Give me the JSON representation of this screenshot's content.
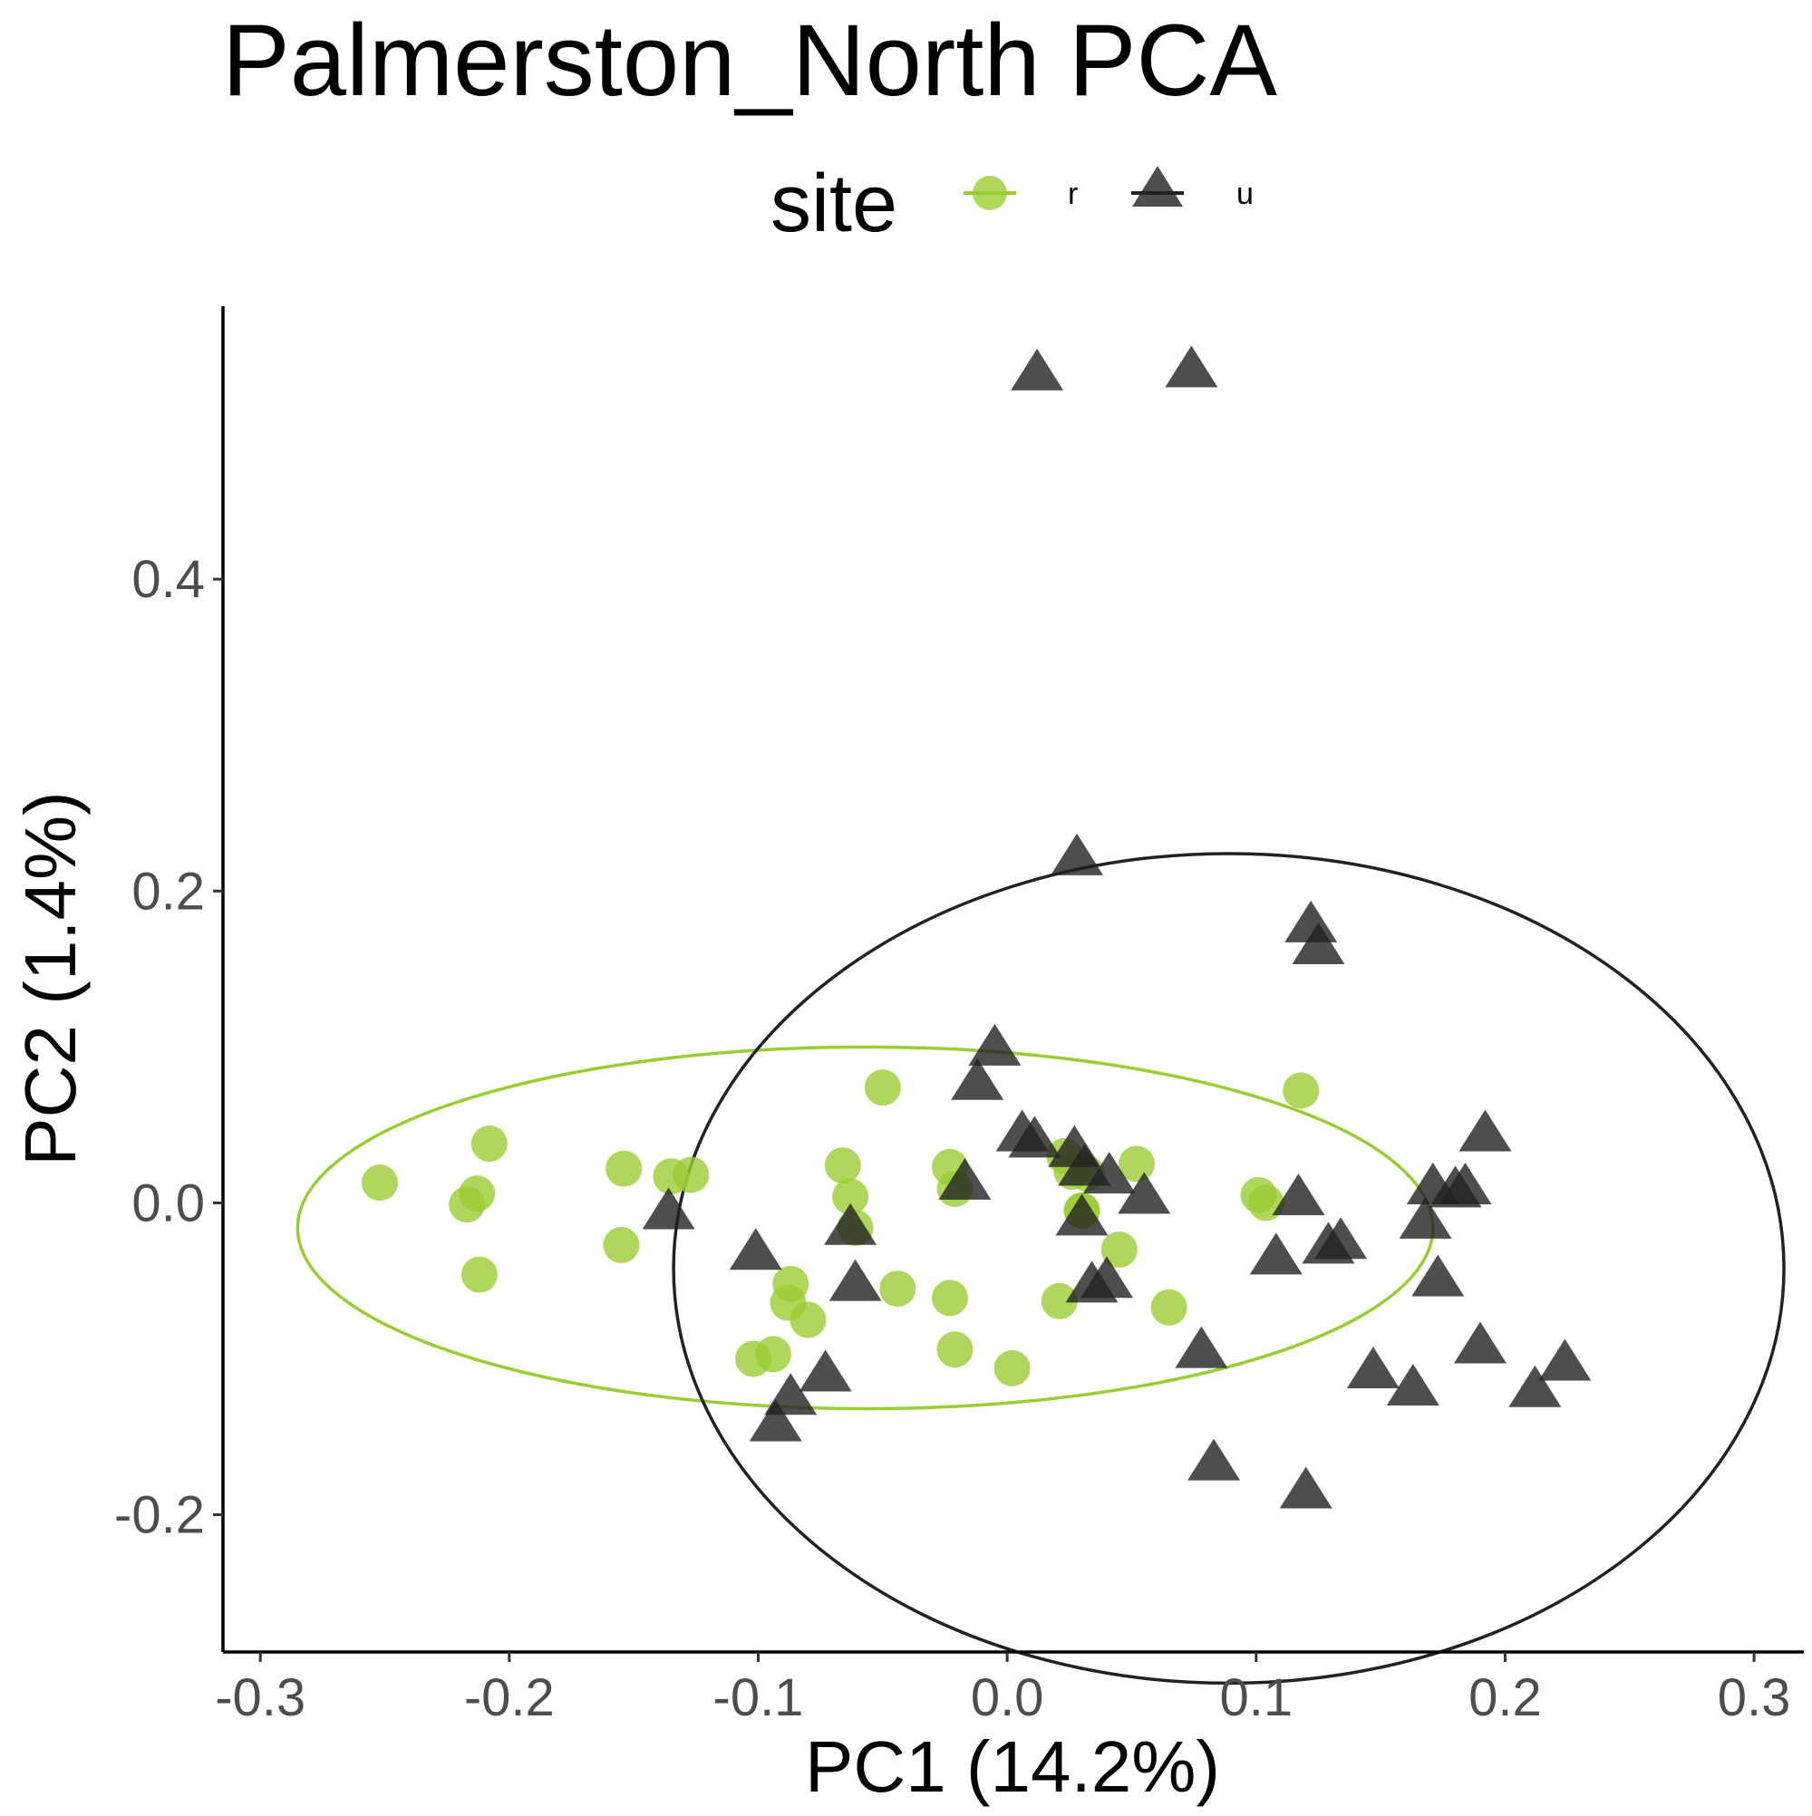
{
  "chart_data": {
    "type": "scatter",
    "title": "Palmerston_North PCA",
    "xlabel": "PC1 (14.2%)",
    "ylabel": "PC2 (1.4%)",
    "xlim": [
      -0.315,
      0.32
    ],
    "ylim": [
      -0.288,
      0.575
    ],
    "xticks": [
      -0.3,
      -0.2,
      -0.1,
      0.0,
      0.1,
      0.2,
      0.3
    ],
    "xtick_labels": [
      "-0.3",
      "-0.2",
      "-0.1",
      "0.0",
      "0.1",
      "0.2",
      "0.3"
    ],
    "yticks": [
      -0.2,
      0.0,
      0.2,
      0.4
    ],
    "ytick_labels": [
      "-0.2",
      "0.0",
      "0.2",
      "0.4"
    ],
    "grid": false,
    "legend": {
      "title": "site",
      "position": "top",
      "entries": [
        {
          "label": "r",
          "shape": "circle",
          "color": "#9acd32"
        },
        {
          "label": "u",
          "shape": "triangle",
          "color": "#222222"
        }
      ]
    },
    "series": [
      {
        "name": "r",
        "marker": "circle",
        "color": "#9acd32",
        "x": [
          -0.252,
          -0.208,
          -0.213,
          -0.217,
          -0.212,
          -0.154,
          -0.155,
          -0.135,
          -0.127,
          -0.05,
          -0.066,
          -0.063,
          -0.061,
          -0.087,
          -0.088,
          -0.08,
          -0.044,
          -0.094,
          -0.102,
          -0.023,
          -0.021,
          -0.023,
          -0.021,
          0.002,
          0.023,
          0.026,
          0.032,
          0.03,
          0.052,
          0.03,
          0.045,
          0.021,
          0.065,
          0.101,
          0.104,
          0.118
        ],
        "y": [
          0.013,
          0.038,
          0.006,
          -0.001,
          -0.046,
          0.022,
          -0.027,
          0.017,
          0.018,
          0.074,
          0.024,
          0.004,
          -0.016,
          -0.052,
          -0.064,
          -0.075,
          -0.055,
          -0.097,
          -0.1,
          0.023,
          0.009,
          -0.061,
          -0.094,
          -0.106,
          0.03,
          0.02,
          0.019,
          -0.005,
          0.025,
          -0.005,
          -0.03,
          -0.063,
          -0.067,
          0.005,
          0.0,
          0.072
        ]
      },
      {
        "name": "u",
        "marker": "triangle",
        "color": "#222222",
        "x": [
          0.012,
          0.074,
          0.028,
          0.122,
          0.125,
          -0.005,
          -0.012,
          0.006,
          0.011,
          0.027,
          0.031,
          0.041,
          0.055,
          0.03,
          -0.017,
          -0.136,
          -0.063,
          -0.101,
          -0.061,
          0.034,
          0.04,
          -0.073,
          -0.087,
          -0.093,
          0.078,
          0.083,
          0.12,
          0.117,
          0.108,
          0.134,
          0.129,
          0.171,
          0.168,
          0.18,
          0.184,
          0.192,
          0.173,
          0.19,
          0.147,
          0.163,
          0.224,
          0.212
        ],
        "y": [
          0.53,
          0.532,
          0.219,
          0.176,
          0.162,
          0.097,
          0.075,
          0.042,
          0.038,
          0.032,
          0.02,
          0.015,
          0.002,
          -0.012,
          0.011,
          -0.008,
          -0.018,
          -0.034,
          -0.054,
          -0.055,
          -0.052,
          -0.112,
          -0.127,
          -0.144,
          -0.097,
          -0.169,
          -0.187,
          0.001,
          -0.037,
          -0.027,
          -0.03,
          0.008,
          -0.014,
          0.006,
          0.008,
          0.042,
          -0.051,
          -0.094,
          -0.11,
          -0.121,
          -0.105,
          -0.122
        ]
      }
    ],
    "ellipses": [
      {
        "group": "r",
        "color": "#9acd32",
        "center": [
          -0.057,
          -0.016
        ],
        "semi_axis_x": 0.228,
        "semi_axis_y": 0.116
      },
      {
        "group": "u",
        "color": "#222222",
        "center": [
          0.089,
          -0.042
        ],
        "semi_axis_x": 0.223,
        "semi_axis_y": 0.266
      }
    ]
  }
}
